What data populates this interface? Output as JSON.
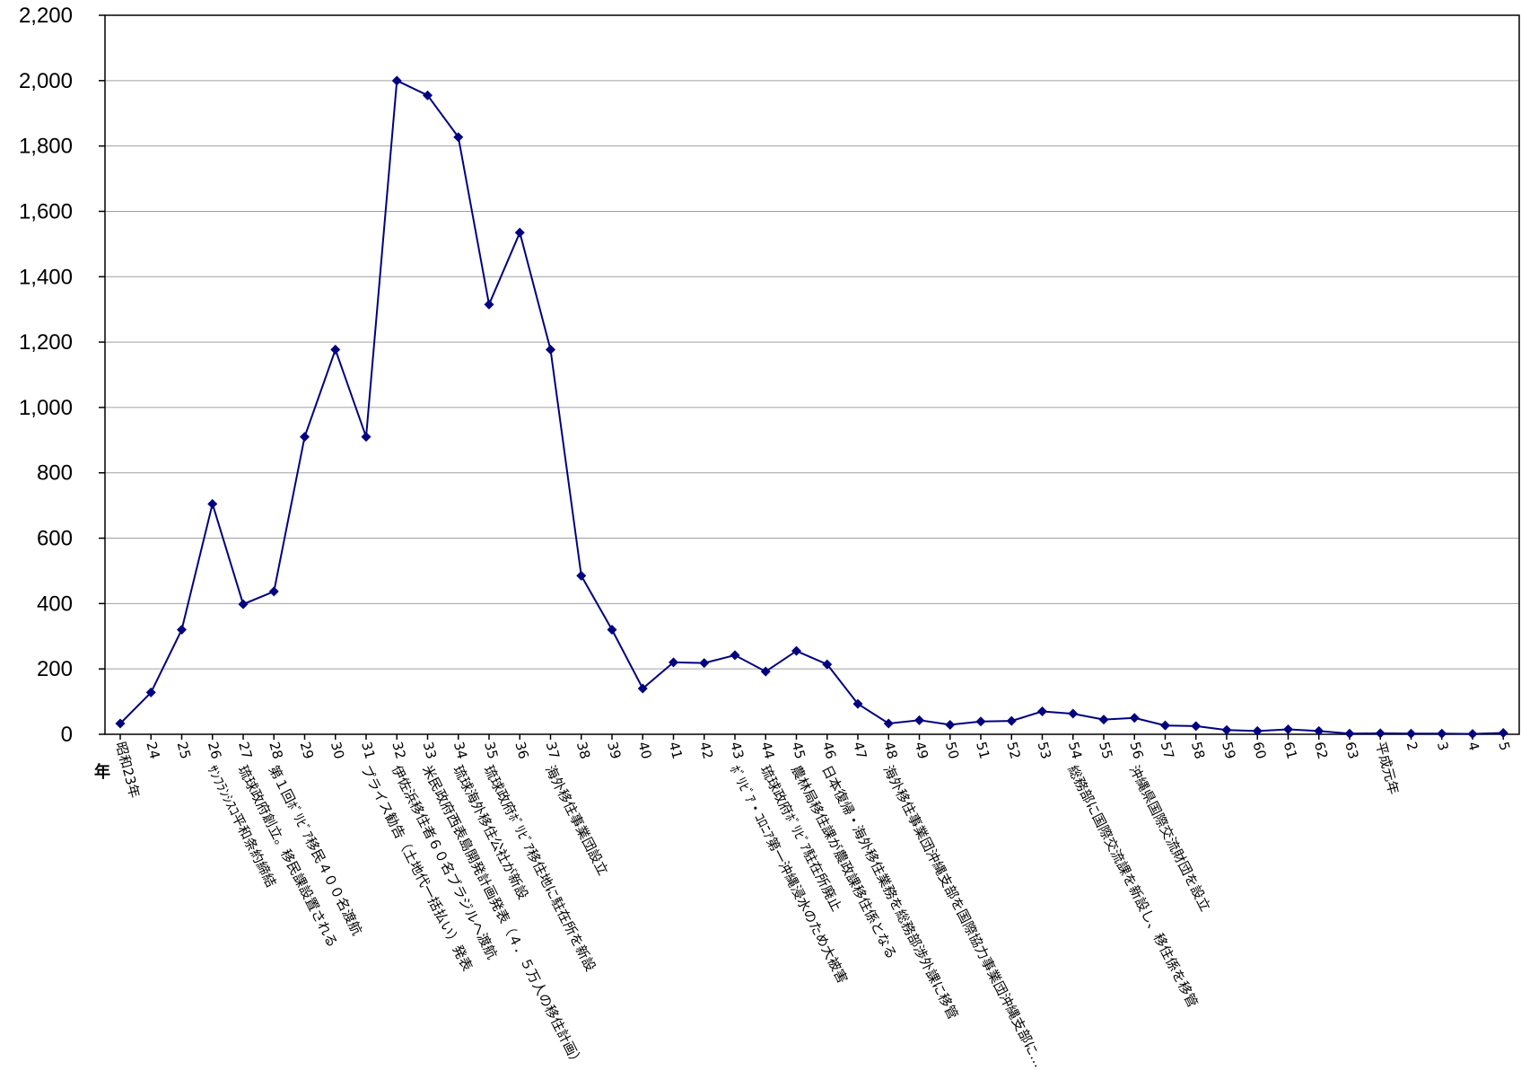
{
  "chart_data": {
    "type": "line",
    "title": "",
    "xlabel": "年",
    "ylabel": "",
    "ylim": [
      0,
      2200
    ],
    "yticks": [
      "0",
      "200",
      "400",
      "600",
      "800",
      "1,000",
      "1,200",
      "1,400",
      "1,600",
      "1,800",
      "2,000",
      "2,200"
    ],
    "grid": true,
    "legend": "none",
    "line_color": "#000080",
    "categories": [
      "昭和23年",
      "24",
      "25",
      "26",
      "27",
      "28",
      "29",
      "30",
      "31",
      "32",
      "33",
      "34",
      "35",
      "36",
      "37",
      "38",
      "39",
      "40",
      "41",
      "42",
      "43",
      "44",
      "45",
      "46",
      "47",
      "48",
      "49",
      "50",
      "51",
      "52",
      "53",
      "54",
      "55",
      "56",
      "57",
      "58",
      "59",
      "60",
      "61",
      "62",
      "63",
      "平成元年",
      "2",
      "3",
      "4",
      "5"
    ],
    "values": [
      33,
      128,
      320,
      705,
      398,
      437,
      910,
      1177,
      910,
      2000,
      1955,
      1827,
      1315,
      1535,
      1177,
      485,
      320,
      140,
      220,
      218,
      242,
      192,
      255,
      214,
      93,
      33,
      43,
      29,
      39,
      41,
      70,
      63,
      45,
      50,
      27,
      25,
      13,
      10,
      15,
      10,
      2,
      3,
      2,
      2,
      1,
      4
    ],
    "annotations": [
      {
        "index": 3,
        "text": "ｻﾝﾌﾗﾝｼｽｺ平和条約締結"
      },
      {
        "index": 4,
        "text": "琉球政府創立。移民課設置される"
      },
      {
        "index": 5,
        "text": "第１回ﾎﾞﾘﾋﾞｱ移民４００名渡航"
      },
      {
        "index": 8,
        "text": "プライス勧告（土地代一括払い）発表"
      },
      {
        "index": 9,
        "text": "伊佐浜移住者６０名ブラジルへ渡航"
      },
      {
        "index": 10,
        "text": "米民政府西表島開発計画発表（４．５万人の移住計画）"
      },
      {
        "index": 11,
        "text": "琉球海外移住公社が新設"
      },
      {
        "index": 12,
        "text": "琉球政府ﾎﾞﾘﾋﾞｱ移住地に駐在所を新設"
      },
      {
        "index": 14,
        "text": "海外移住事業団設立"
      },
      {
        "index": 20,
        "text": "ﾎﾞﾘﾋﾞｱ・ｺﾛﾆｱ第一沖縄浸水のため大被害"
      },
      {
        "index": 21,
        "text": "琉球政府ﾎﾞﾘﾋﾞｱ駐在所廃止"
      },
      {
        "index": 22,
        "text": "農林局移住課が農政課移住係となる"
      },
      {
        "index": 23,
        "text": "日本復帰・海外移住業務を総務部渉外課に移管"
      },
      {
        "index": 25,
        "text": "海外移住事業団沖縄支部を国際協力事業団沖縄支部に…"
      },
      {
        "index": 31,
        "text": "総務部に国際交流課を新設し、移住係を移管"
      },
      {
        "index": 33,
        "text": "沖縄県国際交流財団を設立"
      }
    ]
  }
}
